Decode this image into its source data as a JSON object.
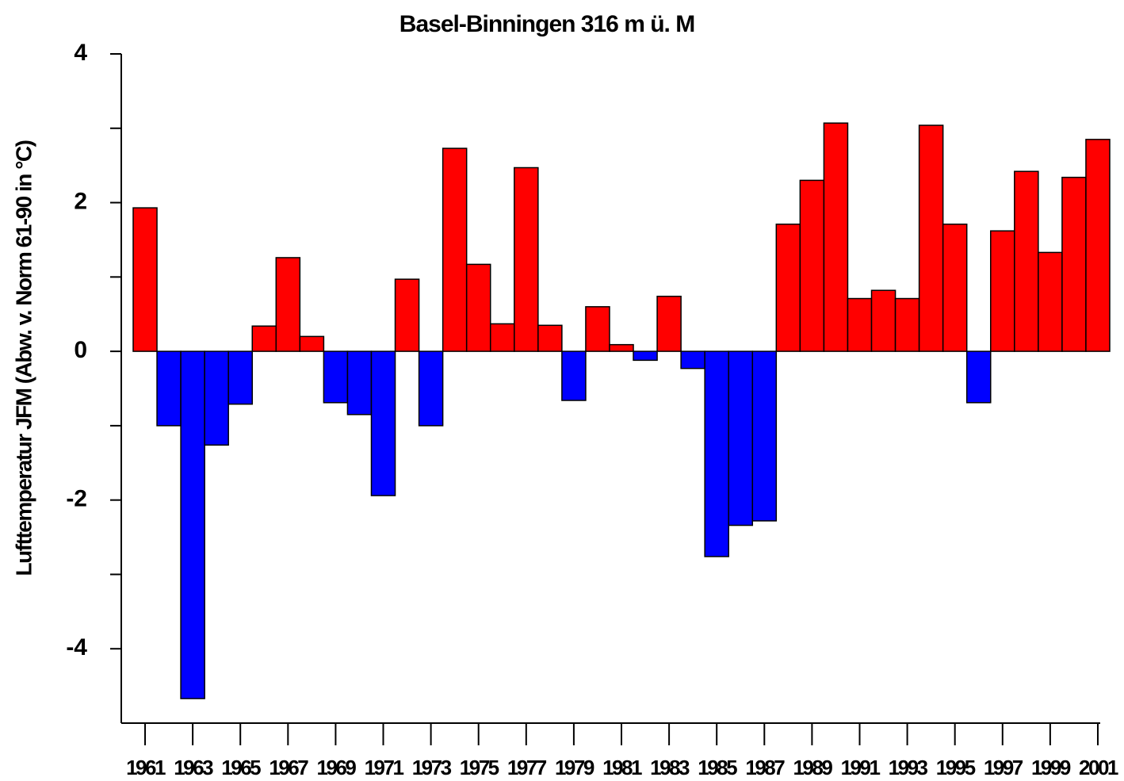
{
  "chart_data": {
    "type": "bar",
    "title": "Basel-Binningen 316 m ü. M",
    "y_label": "Lufttemperatur JFM (Abw. v. Norm 61-90 in °C)",
    "categories": [
      "1961",
      null,
      "1963",
      null,
      "1965",
      null,
      "1967",
      null,
      "1969",
      null,
      "1971",
      null,
      "1973",
      null,
      "1975",
      null,
      "1977",
      null,
      "1979",
      null,
      "1981",
      null,
      "1983",
      null,
      "1985",
      null,
      "1987",
      null,
      "1989",
      null,
      "1991",
      null,
      "1993",
      null,
      "1995",
      null,
      "1997",
      null,
      "1999",
      null,
      "2001"
    ],
    "values": [
      1.93,
      -1.0,
      -4.67,
      -1.26,
      -0.71,
      0.34,
      1.26,
      0.2,
      -0.69,
      -0.85,
      -1.94,
      0.97,
      -1.0,
      2.73,
      1.17,
      0.37,
      2.47,
      0.35,
      -0.66,
      0.6,
      0.09,
      -0.12,
      0.74,
      -0.23,
      -2.76,
      -2.34,
      -2.28,
      1.71,
      2.3,
      3.07,
      0.71,
      0.82,
      0.71,
      3.04,
      1.71,
      -0.69,
      1.62,
      2.42,
      1.33,
      2.34,
      2.85
    ],
    "colors": {
      "positive": "#ff0000",
      "negative": "#0000ff"
    },
    "ylim": [
      -5,
      4
    ],
    "yticks": [
      -4,
      -2,
      0,
      2,
      4
    ],
    "yminorticks": [
      -3,
      -1,
      1,
      3
    ],
    "grid": false
  }
}
